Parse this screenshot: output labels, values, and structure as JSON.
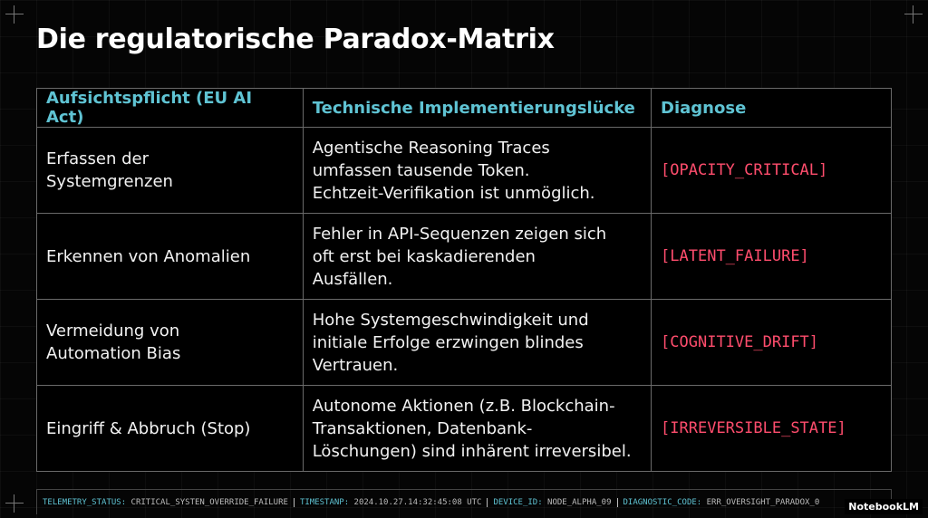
{
  "title": "Die regulatorische Paradox-Matrix",
  "table": {
    "header": [
      "Aufsichtspflicht (EU AI Act)",
      "Technische Implementierungslücke",
      "Diagnose"
    ],
    "rows": [
      [
        "Erfassen der\nSystemgrenzen",
        "Agentische Reasoning Traces\numfassen tausende Token.\nEchtzeit-Verifikation ist unmöglich.",
        "[OPACITY_CRITICAL]"
      ],
      [
        "Erkennen von Anomalien",
        "Fehler in API-Sequenzen zeigen sich\noft erst bei kaskadierenden\nAusfällen.",
        "[LATENT_FAILURE]"
      ],
      [
        "Vermeidung von\nAutomation Bias",
        "Hohe Systemgeschwindigkeit und\ninitiale Erfolge erzwingen blindes\nVertrauen.",
        "[COGNITIVE_DRIFT]"
      ],
      [
        "Eingriff & Abbruch (Stop)",
        "Autonome Aktionen (z.B. Blockchain-\nTransaktionen, Datenbank-\nLöschungen) sind inhärent irreversibel.",
        "[IRREVERSIBLE_STATE]"
      ]
    ]
  },
  "footer": [
    {
      "label": "TELEMETRY_STATUS:",
      "value": "CRITICAL_SYSTEN_OVERRIDE_FAILURE"
    },
    {
      "label": "TIMESTANP:",
      "value": "2024.10.27.14:32:45:08 UTC"
    },
    {
      "label": "DEVICE_ID:",
      "value": "NODE_ALPHA_09"
    },
    {
      "label": "DIAGNOSTIC_CODE:",
      "value": "ERR_OVERSIGHT_PARADOX_0"
    }
  ],
  "watermark": "NotebookLM"
}
